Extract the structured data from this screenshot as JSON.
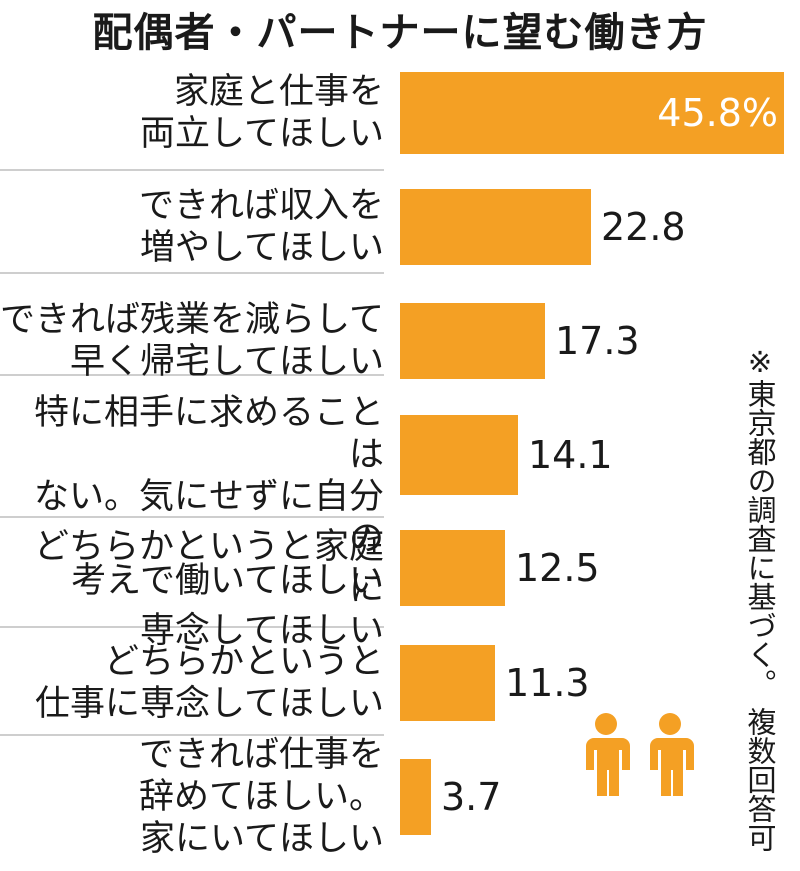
{
  "title": "配偶者・パートナーに望む働き方",
  "footnote": "※東京都の調査に基づく。 複数回答可",
  "colors": {
    "bar": "#F4A024",
    "divider": "#BDBDBD",
    "icon": "#F4A024"
  },
  "icons": {
    "people": "people-icon"
  },
  "chart_data": {
    "type": "bar",
    "orientation": "horizontal",
    "categories": [
      "家庭と仕事を\n両立してほしい",
      "できれば収入を\n増やしてほしい",
      "できれば残業を減らして\n早く帰宅してほしい",
      "特に相手に求めることは\nない。気にせずに自分の\n考えで働いてほしい",
      "どちらかというと家庭に\n専念してほしい",
      "どちらかというと\n仕事に専念してほしい",
      "できれば仕事を\n辞めてほしい。\n家にいてほしい"
    ],
    "values": [
      45.8,
      22.8,
      17.3,
      14.1,
      12.5,
      11.3,
      3.7
    ],
    "value_labels": [
      "45.8%",
      "22.8",
      "17.3",
      "14.1",
      "12.5",
      "11.3",
      "3.7"
    ],
    "unit": "%",
    "xlim": [
      0,
      45.8
    ],
    "grid": false,
    "legend": "none"
  }
}
